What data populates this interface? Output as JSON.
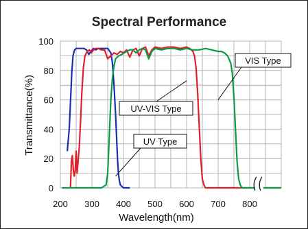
{
  "chart_data": {
    "type": "line",
    "title": "Spectral Performance",
    "xlabel": "Wavelength(nm)",
    "ylabel": "Transmittance(%)",
    "xlim": [
      200,
      900
    ],
    "ylim": [
      0,
      100
    ],
    "x_ticks": [
      200,
      300,
      400,
      500,
      600,
      700,
      800
    ],
    "y_ticks": [
      0,
      20,
      40,
      60,
      80,
      100
    ],
    "grid": true,
    "axis_break_near_x": 830,
    "series": [
      {
        "name": "UV Type",
        "color": "#1a2fb0",
        "x": [
          222,
          224,
          228,
          232,
          236,
          240,
          245,
          250,
          255,
          262,
          268,
          275,
          283,
          290,
          297,
          305,
          312,
          320,
          330,
          340,
          350,
          360,
          365,
          370,
          375,
          378,
          381,
          384,
          387,
          390,
          395,
          400,
          410,
          420
        ],
        "y": [
          25,
          30,
          40,
          58,
          78,
          90,
          94,
          95,
          95,
          95,
          95,
          95,
          94,
          91,
          93,
          95,
          94,
          95,
          95,
          95,
          95,
          92,
          85,
          70,
          50,
          35,
          20,
          10,
          5,
          2,
          1,
          0,
          0,
          0
        ]
      },
      {
        "name": "UV-VIS Type",
        "color": "#e0202a",
        "x": [
          232,
          235,
          238,
          241,
          244,
          247,
          250,
          253,
          256,
          260,
          264,
          268,
          273,
          278,
          285,
          292,
          298,
          305,
          312,
          320,
          330,
          340,
          350,
          360,
          370,
          380,
          390,
          400,
          410,
          420,
          430,
          440,
          450,
          460,
          470,
          480,
          490,
          500,
          520,
          540,
          560,
          580,
          600,
          610,
          620,
          625,
          630,
          635,
          640,
          645,
          650,
          655,
          660,
          670,
          680,
          700,
          750,
          800,
          830,
          850,
          900
        ],
        "y": [
          0,
          18,
          22,
          12,
          8,
          12,
          25,
          10,
          18,
          28,
          45,
          65,
          82,
          90,
          93,
          94,
          92,
          94,
          95,
          95,
          94,
          94,
          88,
          90,
          92,
          91,
          93,
          92,
          94,
          89,
          94,
          95,
          90,
          95,
          96,
          90,
          94,
          96,
          95,
          96,
          96,
          95,
          96,
          95,
          93,
          90,
          82,
          65,
          42,
          20,
          6,
          2,
          0,
          0,
          0,
          0,
          0,
          0,
          0,
          0,
          0
        ]
      },
      {
        "name": "VIS Type",
        "color": "#0a9a4a",
        "x": [
          205,
          250,
          300,
          330,
          345,
          350,
          355,
          360,
          365,
          370,
          375,
          385,
          395,
          410,
          420,
          430,
          440,
          450,
          460,
          470,
          480,
          490,
          500,
          520,
          540,
          560,
          580,
          600,
          620,
          640,
          660,
          680,
          700,
          710,
          720,
          730,
          740,
          745,
          750,
          755,
          760,
          765,
          770,
          775,
          780,
          790,
          800,
          830,
          900
        ],
        "y": [
          0,
          0,
          0,
          0,
          2,
          10,
          35,
          60,
          75,
          83,
          88,
          90,
          91,
          93,
          94,
          94,
          92,
          94,
          95,
          94,
          88,
          93,
          95,
          94,
          95,
          95,
          94,
          95,
          94,
          94,
          95,
          94,
          93,
          93,
          92,
          90,
          85,
          78,
          62,
          40,
          18,
          6,
          2,
          0,
          0,
          0,
          0,
          0,
          0
        ]
      }
    ],
    "callouts": [
      {
        "text": "VIS Type",
        "series": "VIS Type"
      },
      {
        "text": "UV-VIS Type",
        "series": "UV-VIS Type"
      },
      {
        "text": "UV Type",
        "series": "UV Type"
      }
    ]
  }
}
